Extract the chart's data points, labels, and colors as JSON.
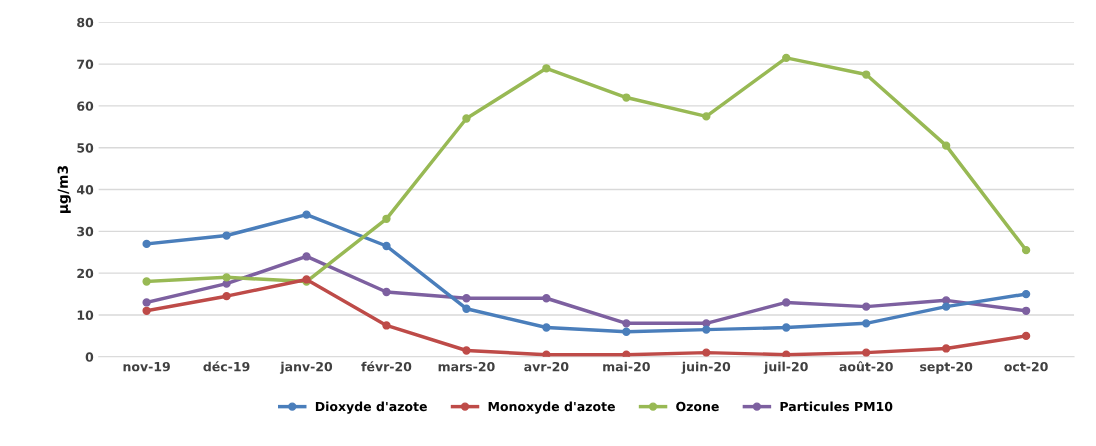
{
  "chart_data": {
    "type": "line",
    "ylabel": "µg/m3",
    "categories": [
      "nov-19",
      "déc-19",
      "janv-20",
      "févr-20",
      "mars-20",
      "avr-20",
      "mai-20",
      "juin-20",
      "juil-20",
      "août-20",
      "sept-20",
      "oct-20"
    ],
    "series": [
      {
        "name": "Dioxyde d'azote",
        "color": "#4a7ebb",
        "values": [
          27,
          29,
          34,
          26.5,
          11.5,
          7,
          6,
          6.5,
          7,
          8,
          12,
          15
        ]
      },
      {
        "name": "Monoxyde d'azote",
        "color": "#be4b48",
        "values": [
          11,
          14.5,
          18.5,
          7.5,
          1.5,
          0.5,
          0.5,
          1,
          0.5,
          1,
          2,
          5
        ]
      },
      {
        "name": "Ozone",
        "color": "#98b954",
        "values": [
          18,
          19,
          18,
          33,
          57,
          69,
          62,
          57.5,
          71.5,
          67.5,
          50.5,
          25.5
        ]
      },
      {
        "name": "Particules PM10",
        "color": "#7d60a0",
        "values": [
          13,
          17.5,
          24,
          15.5,
          14,
          14,
          8,
          8,
          13,
          12,
          13.5,
          11
        ]
      }
    ],
    "ylim": [
      0,
      80
    ],
    "yticks": [
      0,
      10,
      20,
      30,
      40,
      50,
      60,
      70,
      80
    ],
    "grid": "y",
    "legend": "bottom",
    "marker": "circle",
    "line_style": "solid"
  }
}
